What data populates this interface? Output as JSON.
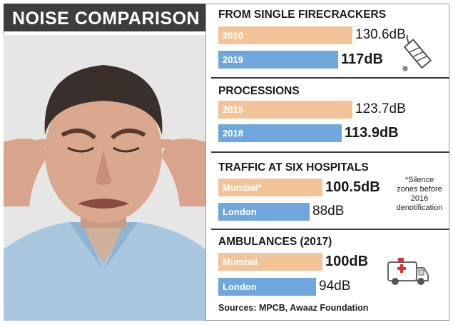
{
  "title": "NOISE COMPARISON",
  "colors": {
    "older": "#f3c499",
    "newer": "#6fa6dc",
    "title_bg": "#3d3d3d"
  },
  "sections": [
    {
      "title": "FROM SINGLE FIRECRACKERS",
      "bars": [
        {
          "label": "2010",
          "value": 130.6,
          "value_text": "130.6dB"
        },
        {
          "label": "2019",
          "value": 117,
          "value_text": "117dB"
        }
      ]
    },
    {
      "title": "PROCESSIONS",
      "bars": [
        {
          "label": "2015",
          "value": 123.7,
          "value_text": "123.7dB"
        },
        {
          "label": "2018",
          "value": 113.9,
          "value_text": "113.9dB"
        }
      ]
    },
    {
      "title": "TRAFFIC AT SIX HOSPITALS",
      "bars": [
        {
          "label": "Mumbai*",
          "value": 100.5,
          "value_text": "100.5dB"
        },
        {
          "label": "London",
          "value": 88,
          "value_text": "88dB"
        }
      ]
    },
    {
      "title": "AMBULANCES (2017)",
      "bars": [
        {
          "label": "Mumbai",
          "value": 100,
          "value_text": "100dB"
        },
        {
          "label": "London",
          "value": 94,
          "value_text": "94dB"
        }
      ]
    }
  ],
  "note": "*Silence zones before 2016 denotification",
  "source": "Sources: MPCB, Awaaz Foundation",
  "icons": [
    "firecracker-icon",
    "ambulance-icon"
  ],
  "chart_data": {
    "type": "bar",
    "title": "NOISE COMPARISON",
    "xlabel": "",
    "ylabel": "",
    "groups": [
      {
        "name": "FROM SINGLE FIRECRACKERS",
        "categories": [
          "2010",
          "2019"
        ],
        "values": [
          130.6,
          117
        ]
      },
      {
        "name": "PROCESSIONS",
        "categories": [
          "2015",
          "2018"
        ],
        "values": [
          123.7,
          113.9
        ]
      },
      {
        "name": "TRAFFIC AT SIX HOSPITALS",
        "categories": [
          "Mumbai*",
          "London"
        ],
        "values": [
          100.5,
          88
        ]
      },
      {
        "name": "AMBULANCES (2017)",
        "categories": [
          "Mumbai",
          "London"
        ],
        "values": [
          100,
          94
        ]
      }
    ],
    "unit": "dB",
    "grid": false,
    "legend": "none"
  }
}
